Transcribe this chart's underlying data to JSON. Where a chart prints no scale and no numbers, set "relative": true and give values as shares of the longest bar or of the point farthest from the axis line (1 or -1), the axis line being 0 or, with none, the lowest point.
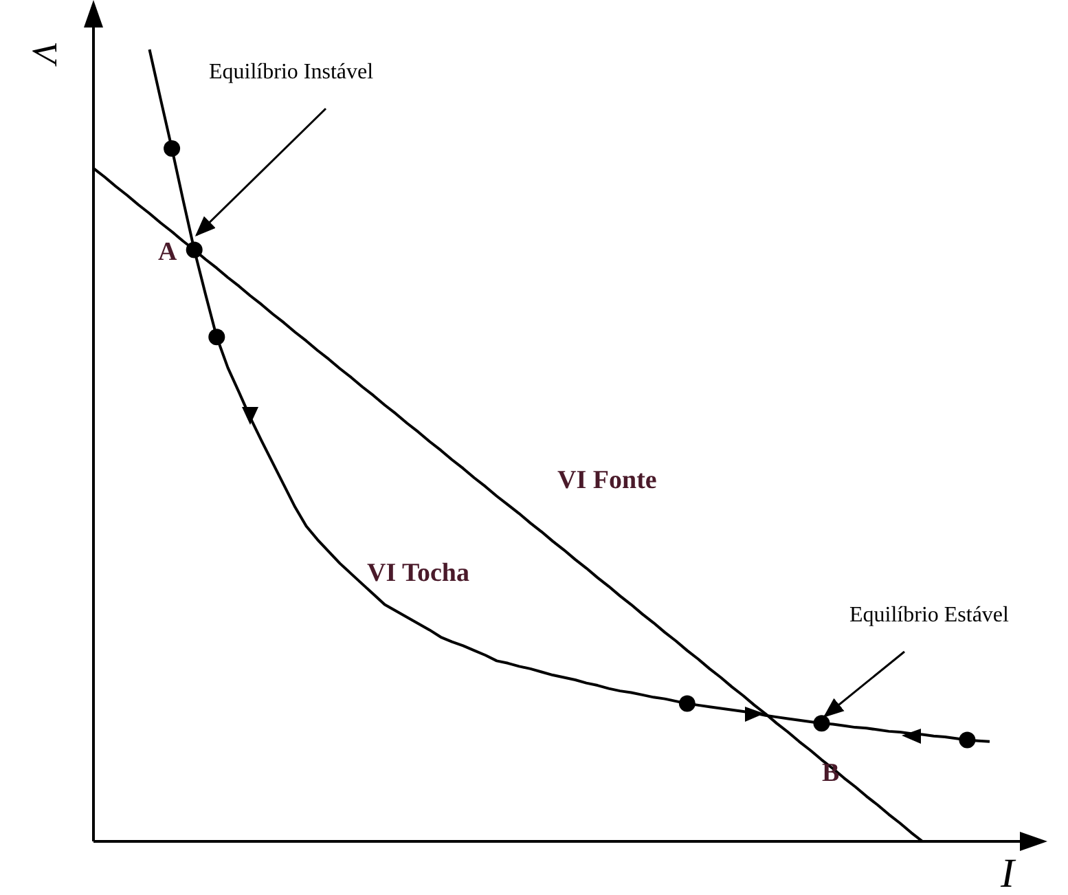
{
  "chart_data": {
    "type": "line",
    "relative": true,
    "xlabel": "I",
    "ylabel": "V",
    "marker": "none",
    "line_style": "solid",
    "categories": [
      null,
      null,
      null,
      null,
      null,
      null,
      null,
      null,
      null,
      null,
      null,
      null,
      null,
      null,
      null,
      null,
      null,
      null,
      null,
      null,
      null,
      null,
      null,
      null,
      null,
      null,
      null,
      null,
      null,
      null,
      null,
      null,
      null,
      null,
      null,
      null,
      null,
      null,
      null,
      null,
      null,
      null,
      null,
      null,
      null,
      null,
      null,
      null,
      null,
      null,
      null,
      null,
      null,
      null,
      null,
      null,
      null,
      null,
      null,
      null,
      null,
      null,
      null,
      null,
      null,
      null,
      null,
      null,
      null,
      null,
      null,
      null,
      null,
      null,
      null,
      null,
      null,
      null,
      null,
      null,
      null
    ],
    "series": [
      {
        "name": "VI Fonte",
        "color": "#000000",
        "values": [
          0.85,
          0.839,
          0.827,
          0.816,
          0.804,
          0.793,
          0.781,
          0.77,
          0.758,
          0.747,
          0.735,
          0.724,
          0.712,
          0.701,
          0.689,
          0.678,
          0.666,
          0.655,
          0.643,
          0.632,
          0.62,
          0.609,
          0.597,
          0.586,
          0.574,
          0.563,
          0.551,
          0.54,
          0.528,
          0.517,
          0.505,
          0.494,
          0.482,
          0.471,
          0.459,
          0.448,
          0.436,
          0.425,
          0.414,
          0.402,
          0.391,
          0.379,
          0.368,
          0.356,
          0.345,
          0.333,
          0.322,
          0.31,
          0.299,
          0.287,
          0.276,
          0.264,
          0.253,
          0.241,
          0.23,
          0.218,
          0.207,
          0.195,
          0.184,
          0.172,
          0.161,
          0.149,
          0.138,
          0.126,
          0.115,
          0.103,
          0.092,
          0.08,
          0.069,
          0.057,
          0.046,
          0.034,
          0.023,
          0.011,
          0,
          null,
          null,
          null,
          null,
          null,
          null
        ]
      },
      {
        "name": "VI Tocha",
        "color": "#000000",
        "values": [
          null,
          null,
          null,
          null,
          null,
          1.0,
          0.937,
          0.875,
          0.81,
          0.747,
          0.691,
          0.637,
          0.598,
          0.567,
          0.535,
          0.506,
          0.478,
          0.45,
          0.422,
          0.398,
          0.381,
          0.366,
          0.351,
          0.338,
          0.325,
          0.312,
          0.299,
          0.291,
          0.283,
          0.275,
          0.267,
          0.258,
          0.252,
          0.247,
          0.241,
          0.235,
          0.228,
          0.225,
          0.221,
          0.218,
          0.214,
          0.21,
          0.207,
          0.204,
          0.2,
          0.197,
          0.193,
          0.19,
          0.188,
          0.185,
          0.182,
          0.18,
          0.177,
          0.174,
          0.172,
          0.17,
          0.168,
          0.166,
          0.164,
          0.162,
          0.159,
          0.157,
          0.155,
          0.153,
          0.151,
          0.149,
          0.148,
          0.146,
          0.144,
          0.143,
          0.141,
          0.139,
          0.138,
          0.136,
          0.135,
          0.133,
          0.132,
          0.13,
          0.128,
          0.127,
          0.126
        ]
      }
    ],
    "annotations": [
      "Equilíbrio Instável",
      "A",
      "Equilíbrio Estável",
      "B"
    ]
  }
}
